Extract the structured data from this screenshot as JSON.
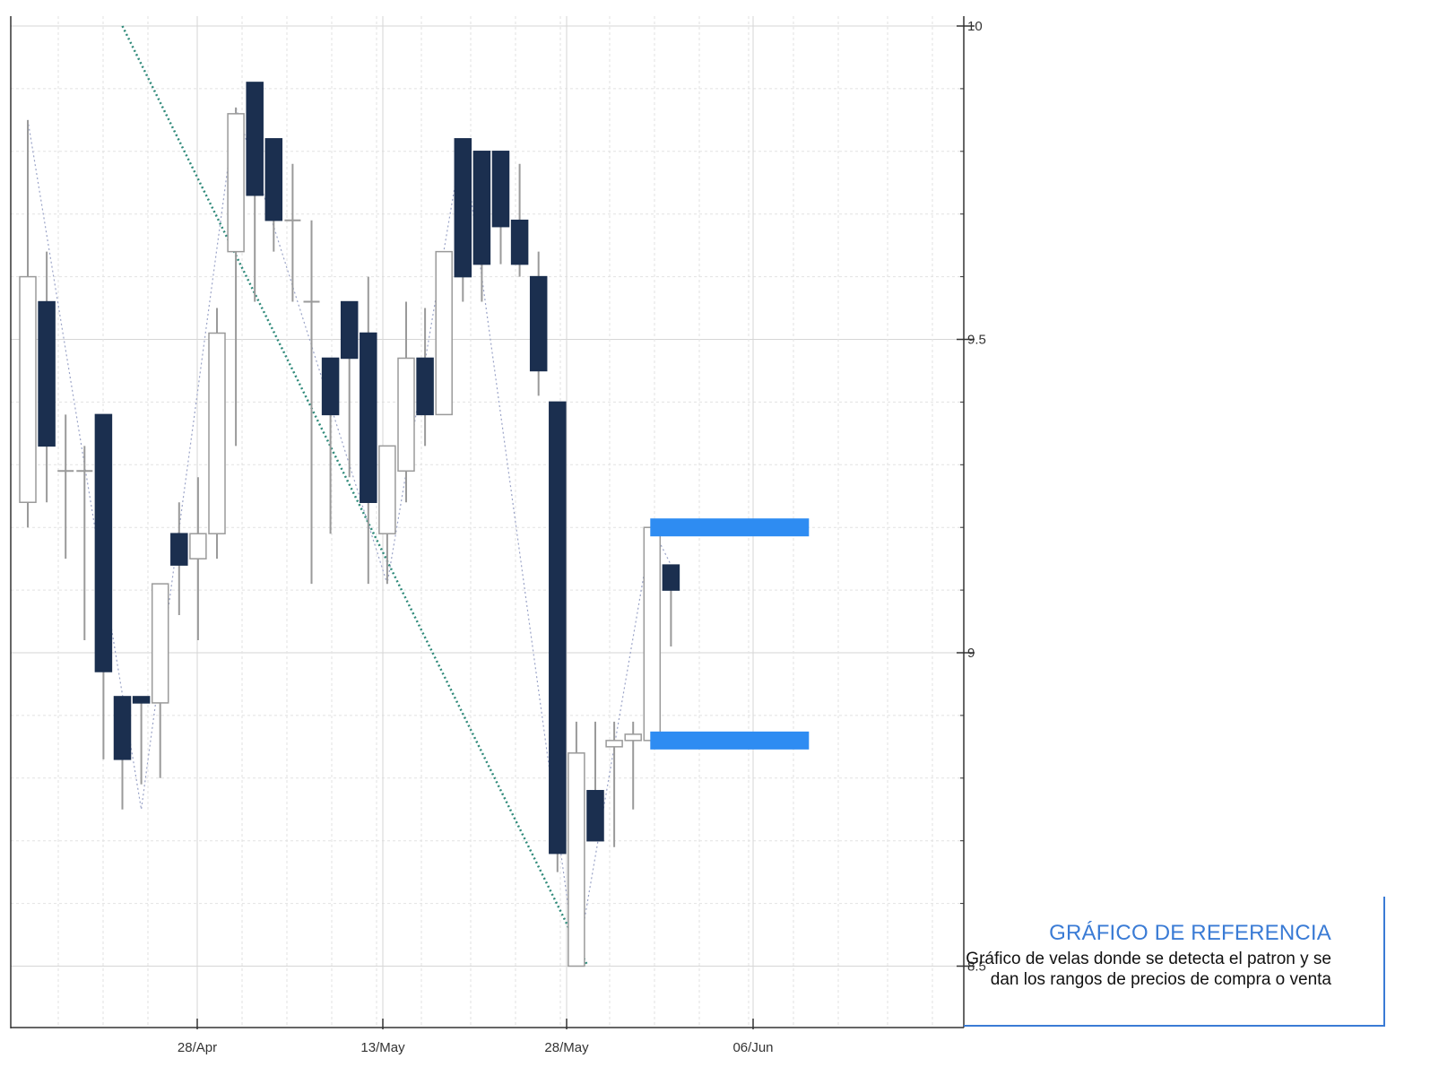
{
  "chart_data": {
    "type": "candlestick",
    "y_axis": {
      "position": "right",
      "ylim": [
        8.4,
        10.0
      ],
      "ticks": [
        10,
        9.5,
        9,
        8.5
      ],
      "tick_labels": [
        "10",
        "9.5",
        "9",
        "8.5"
      ]
    },
    "x_axis": {
      "tick_labels": [
        "28/Apr",
        "13/May",
        "28/May",
        "06/Jun"
      ]
    },
    "grid": true,
    "candles": [
      {
        "open": 9.24,
        "high": 9.85,
        "low": 9.2,
        "close": 9.6
      },
      {
        "open": 9.56,
        "high": 9.64,
        "low": 9.24,
        "close": 9.33
      },
      {
        "open": 9.29,
        "high": 9.38,
        "low": 9.15,
        "close": 9.29
      },
      {
        "open": 9.29,
        "high": 9.33,
        "low": 9.02,
        "close": 9.29
      },
      {
        "open": 9.38,
        "high": 9.38,
        "low": 8.83,
        "close": 8.97
      },
      {
        "open": 8.93,
        "high": 8.93,
        "low": 8.75,
        "close": 8.83
      },
      {
        "open": 8.93,
        "high": 8.93,
        "low": 8.79,
        "close": 8.92
      },
      {
        "open": 8.92,
        "high": 9.11,
        "low": 8.8,
        "close": 9.11
      },
      {
        "open": 9.19,
        "high": 9.24,
        "low": 9.06,
        "close": 9.14
      },
      {
        "open": 9.15,
        "high": 9.28,
        "low": 9.02,
        "close": 9.19
      },
      {
        "open": 9.19,
        "high": 9.55,
        "low": 9.15,
        "close": 9.51
      },
      {
        "open": 9.64,
        "high": 9.87,
        "low": 9.33,
        "close": 9.86
      },
      {
        "open": 9.91,
        "high": 9.91,
        "low": 9.56,
        "close": 9.73
      },
      {
        "open": 9.82,
        "high": 9.82,
        "low": 9.64,
        "close": 9.69
      },
      {
        "open": 9.69,
        "high": 9.78,
        "low": 9.56,
        "close": 9.69
      },
      {
        "open": 9.56,
        "high": 9.69,
        "low": 9.11,
        "close": 9.56
      },
      {
        "open": 9.47,
        "high": 9.47,
        "low": 9.19,
        "close": 9.38
      },
      {
        "open": 9.56,
        "high": 9.56,
        "low": 9.28,
        "close": 9.47
      },
      {
        "open": 9.51,
        "high": 9.6,
        "low": 9.11,
        "close": 9.24
      },
      {
        "open": 9.19,
        "high": 9.33,
        "low": 9.11,
        "close": 9.33
      },
      {
        "open": 9.29,
        "high": 9.56,
        "low": 9.24,
        "close": 9.47
      },
      {
        "open": 9.47,
        "high": 9.55,
        "low": 9.33,
        "close": 9.38
      },
      {
        "open": 9.38,
        "high": 9.64,
        "low": 9.38,
        "close": 9.64
      },
      {
        "open": 9.82,
        "high": 9.82,
        "low": 9.56,
        "close": 9.6
      },
      {
        "open": 9.8,
        "high": 9.8,
        "low": 9.56,
        "close": 9.62
      },
      {
        "open": 9.8,
        "high": 9.8,
        "low": 9.62,
        "close": 9.68
      },
      {
        "open": 9.69,
        "high": 9.78,
        "low": 9.6,
        "close": 9.62
      },
      {
        "open": 9.6,
        "high": 9.64,
        "low": 9.41,
        "close": 9.45
      },
      {
        "open": 9.4,
        "high": 9.4,
        "low": 8.65,
        "close": 8.68
      },
      {
        "open": 8.5,
        "high": 8.89,
        "low": 8.5,
        "close": 8.84
      },
      {
        "open": 8.78,
        "high": 8.89,
        "low": 8.7,
        "close": 8.7
      },
      {
        "open": 8.85,
        "high": 8.89,
        "low": 8.69,
        "close": 8.86
      },
      {
        "open": 8.86,
        "high": 8.89,
        "low": 8.75,
        "close": 8.87
      },
      {
        "open": 8.86,
        "high": 9.2,
        "low": 8.86,
        "close": 9.2
      },
      {
        "open": 9.14,
        "high": 9.14,
        "low": 9.01,
        "close": 9.1
      }
    ],
    "price_ranges": [
      {
        "price": 9.2
      },
      {
        "price": 8.86
      }
    ],
    "trendline": {
      "from": {
        "candle": 5,
        "price": 10.0
      },
      "to": {
        "candle": 29.6,
        "price": 8.5
      }
    },
    "colors": {
      "bearish": "#1b2f4f",
      "bullish": "#ffffff",
      "outline": "#9a9a9a",
      "range_band": "#2e8cf2",
      "trendline": "#2f8a7a",
      "zigzag": "#9aa3c7",
      "grid": "#e2e2e2"
    }
  },
  "caption": {
    "title": "GRÁFICO DE REFERENCIA",
    "text": "Gráfico de velas donde se detecta el patron y se dan los rangos de precios de compra o venta"
  }
}
